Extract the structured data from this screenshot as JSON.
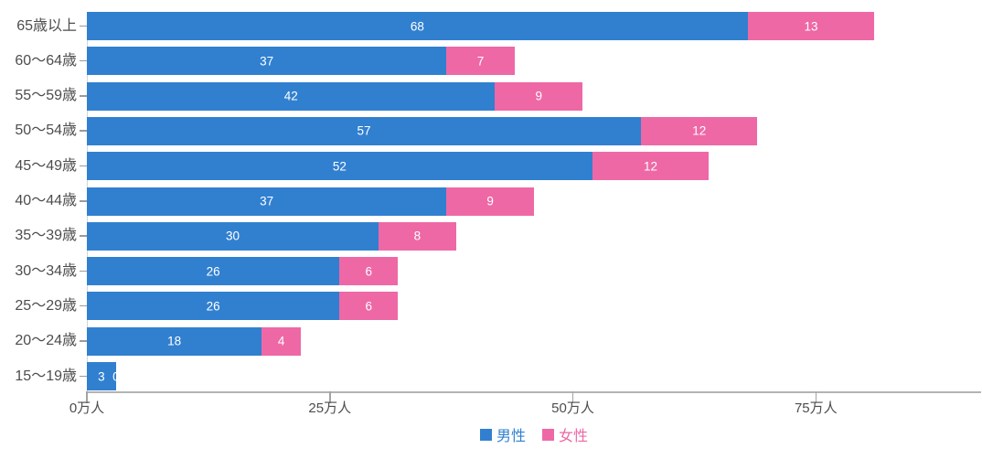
{
  "chart_data": {
    "type": "bar",
    "orientation": "horizontal",
    "stacked": true,
    "title": "",
    "xlabel": "",
    "ylabel": "",
    "unit": "万人",
    "categories": [
      "65歳以上",
      "60〜64歳",
      "55〜59歳",
      "50〜54歳",
      "45〜49歳",
      "40〜44歳",
      "35〜39歳",
      "30〜34歳",
      "25〜29歳",
      "20〜24歳",
      "15〜19歳"
    ],
    "series": [
      {
        "name": "男性",
        "color": "#3180d0",
        "values": [
          68,
          37,
          42,
          57,
          52,
          37,
          30,
          26,
          26,
          18,
          3
        ]
      },
      {
        "name": "女性",
        "color": "#ee68a6",
        "values": [
          13,
          7,
          9,
          12,
          12,
          9,
          8,
          6,
          6,
          4,
          0
        ]
      }
    ],
    "x_axis": {
      "max": 92,
      "ticks": [
        {
          "value": 0,
          "label": "0万人"
        },
        {
          "value": 25,
          "label": "25万人"
        },
        {
          "value": 50,
          "label": "50万人"
        },
        {
          "value": 75,
          "label": "75万人"
        }
      ]
    },
    "value_labels": "white, centered inside each segment",
    "legend_position": "bottom-center",
    "grid": false
  },
  "colors": {
    "background": "#ffffff",
    "axis_line": "#b3b3b3",
    "y_axis_line": "#d6d6d6",
    "tick": "#a3a3a3",
    "axis_text": "#4d4d4d",
    "bar_value_text": "#ffffff"
  }
}
